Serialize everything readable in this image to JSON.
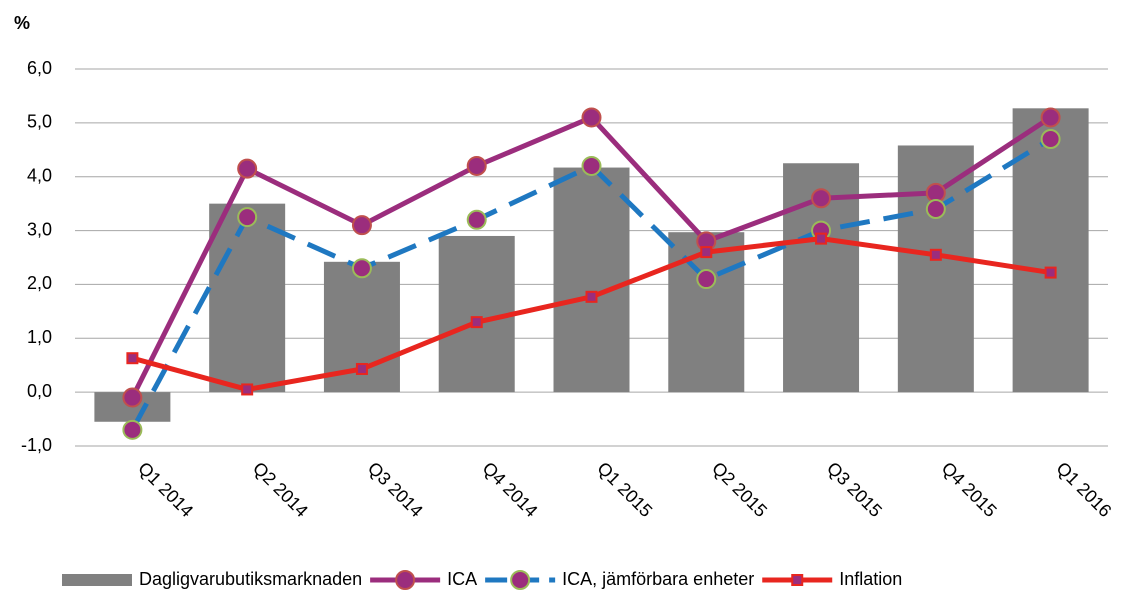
{
  "chart_data": {
    "type": "bar_line",
    "y_label": "%",
    "categories": [
      "Q1 2014",
      "Q2 2014",
      "Q3 2014",
      "Q4 2014",
      "Q1 2015",
      "Q2 2015",
      "Q3 2015",
      "Q4 2015",
      "Q1 2016"
    ],
    "series": [
      {
        "name": "Dagligvarubutiksmarknaden",
        "type": "bar",
        "color": "#808080",
        "values": [
          -0.55,
          3.5,
          2.42,
          2.9,
          4.17,
          2.97,
          4.25,
          4.58,
          5.27
        ]
      },
      {
        "name": "ICA",
        "type": "line",
        "color": "#9b2d7d",
        "marker": "circle",
        "marker_color": "#9b2d7d",
        "marker_edge": "#c0504d",
        "dashed": false,
        "values": [
          -0.1,
          4.15,
          3.1,
          4.2,
          5.1,
          2.8,
          3.6,
          3.7,
          5.1
        ]
      },
      {
        "name": "ICA, jämförbara enheter",
        "type": "line",
        "color": "#1f78c1",
        "marker": "circle",
        "marker_color": "#9b2d7d",
        "marker_edge": "#9bbb59",
        "dashed": true,
        "values": [
          -0.7,
          3.25,
          2.3,
          3.2,
          4.2,
          2.1,
          3.0,
          3.4,
          4.7
        ]
      },
      {
        "name": "Inflation",
        "type": "line",
        "color": "#e8261f",
        "marker": "square",
        "marker_color": "#9b2d7d",
        "marker_edge": "#e8261f",
        "dashed": false,
        "values": [
          0.63,
          0.05,
          0.43,
          1.3,
          1.77,
          2.6,
          2.85,
          2.55,
          2.22
        ]
      }
    ],
    "ylim": [
      -1,
      6
    ],
    "yticks": [
      {
        "value": -1,
        "label": "-1,0"
      },
      {
        "value": 0,
        "label": "0,0"
      },
      {
        "value": 1,
        "label": "1,0"
      },
      {
        "value": 2,
        "label": "2,0"
      },
      {
        "value": 3,
        "label": "3,0"
      },
      {
        "value": 4,
        "label": "4,0"
      },
      {
        "value": 5,
        "label": "5,0"
      },
      {
        "value": 6,
        "label": "6,0"
      }
    ],
    "grid": true,
    "legend": "bottom"
  }
}
